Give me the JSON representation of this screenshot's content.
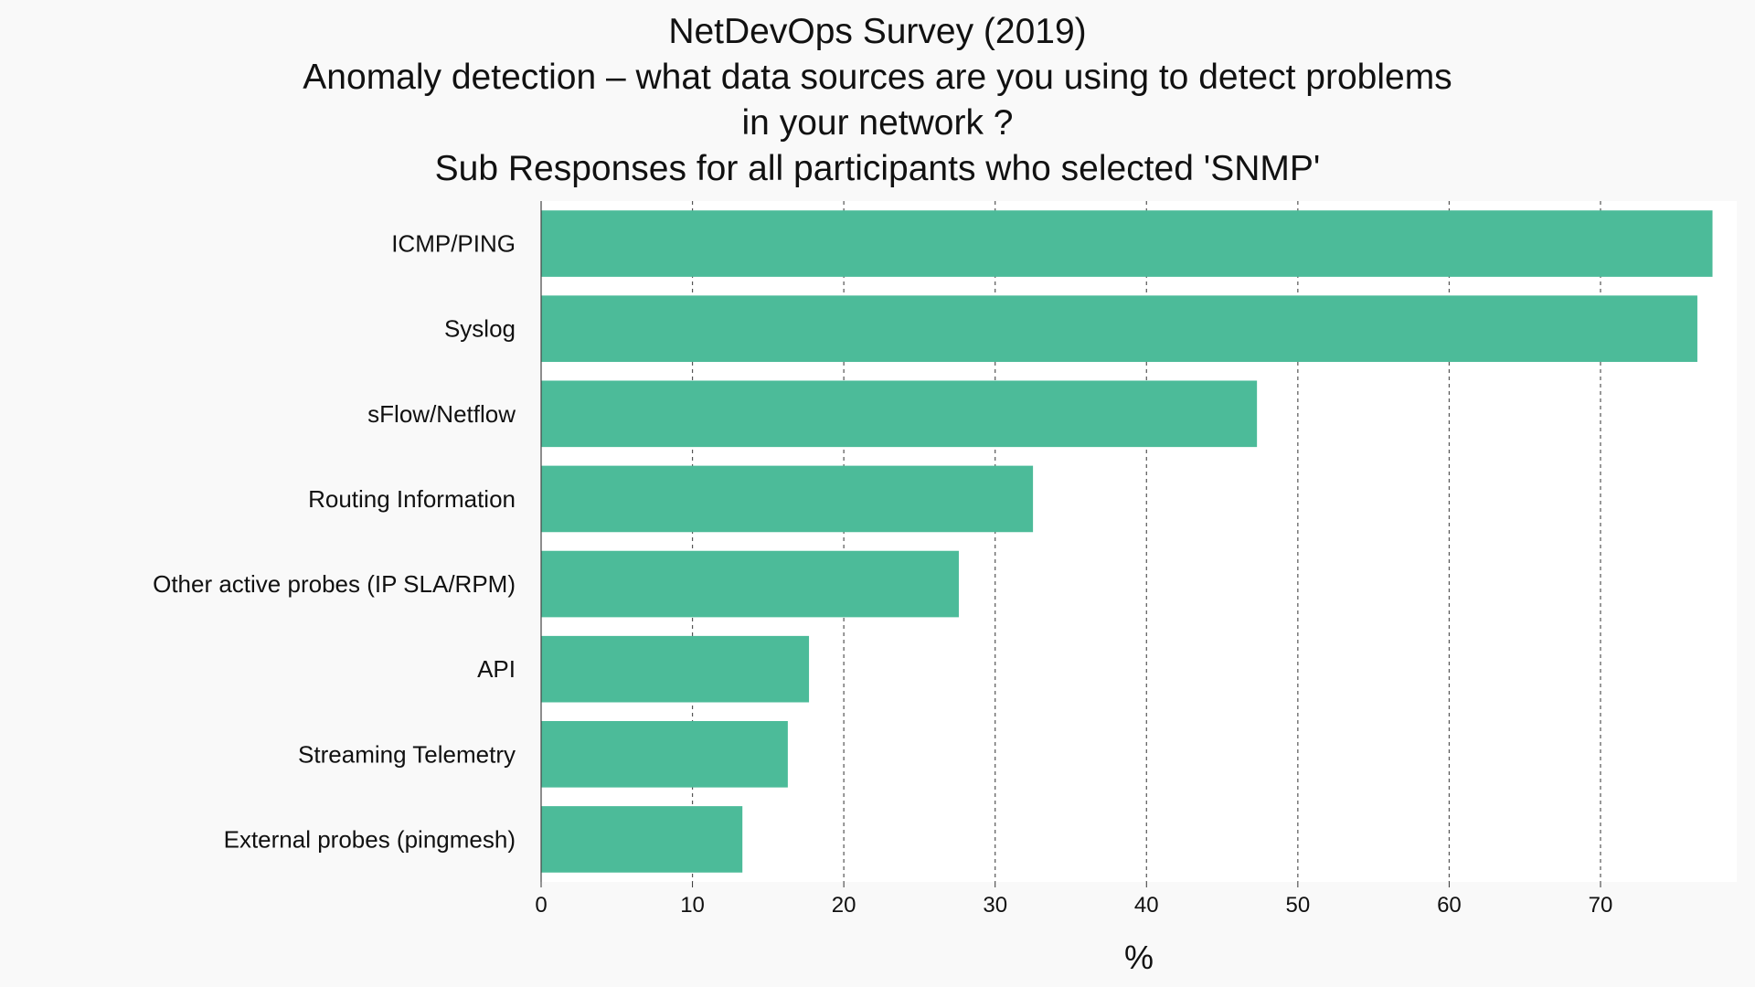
{
  "chart_data": {
    "type": "bar",
    "orientation": "horizontal",
    "title_lines": [
      "NetDevOps Survey (2019)",
      "Anomaly detection – what data sources are you using to detect problems",
      "in your network ?",
      "Sub Responses for all participants who selected 'SNMP'"
    ],
    "categories": [
      "ICMP/PING",
      "Syslog",
      "sFlow/Netflow",
      "Routing Information",
      "Other active probes (IP SLA/RPM)",
      "API",
      "Streaming Telemetry",
      "External probes (pingmesh)"
    ],
    "values": [
      77.4,
      76.4,
      47.3,
      32.5,
      27.6,
      17.7,
      16.3,
      13.3
    ],
    "xlabel": "%",
    "ylabel": "",
    "xlim": [
      0,
      79
    ],
    "xticks": [
      0,
      10,
      20,
      30,
      40,
      50,
      60,
      70
    ],
    "grid": "vertical-dashed",
    "legend": "none",
    "colors": {
      "bar": "#4cbb99",
      "background": "#f9f9f9",
      "plot_background": "#ffffff",
      "grid": "#555555"
    }
  }
}
